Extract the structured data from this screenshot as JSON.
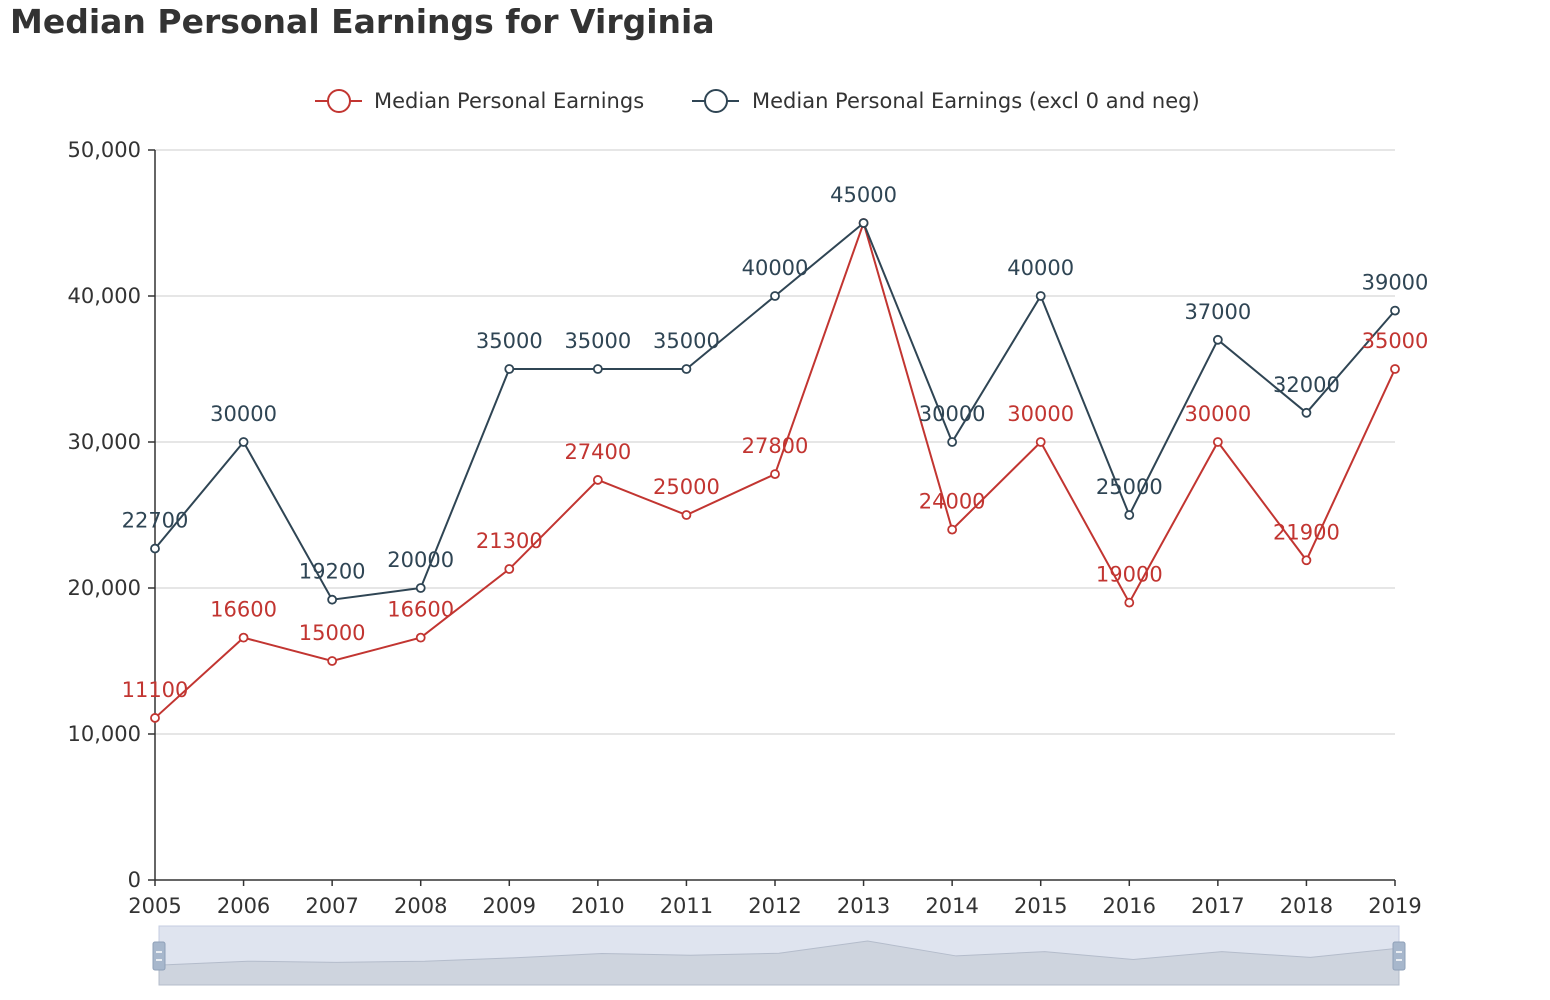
{
  "chart_data": {
    "type": "line",
    "title": "Median Personal Earnings for Virginia",
    "xlabel": "",
    "ylabel": "",
    "categories": [
      "2005",
      "2006",
      "2007",
      "2008",
      "2009",
      "2010",
      "2011",
      "2012",
      "2013",
      "2014",
      "2015",
      "2016",
      "2017",
      "2018",
      "2019"
    ],
    "ylim": [
      0,
      50000
    ],
    "yticks": [
      0,
      10000,
      20000,
      30000,
      40000,
      50000
    ],
    "ytick_labels": [
      "0",
      "10,000",
      "20,000",
      "30,000",
      "40,000",
      "50,000"
    ],
    "grid": true,
    "legend_position": "top",
    "data_zoom": "full range",
    "series": [
      {
        "name": "Median Personal Earnings",
        "color": "#c23531",
        "values": [
          11100,
          16600,
          15000,
          16600,
          21300,
          27400,
          25000,
          27800,
          45000,
          24000,
          30000,
          19000,
          30000,
          21900,
          35000
        ],
        "labels": [
          "11100",
          "16600",
          "15000",
          "16600",
          "21300",
          "27400",
          "25000",
          "27800",
          "",
          "24000",
          "30000",
          "19000",
          "30000",
          "21900",
          "35000"
        ]
      },
      {
        "name": "Median Personal Earnings (excl 0 and neg)",
        "color": "#2f4554",
        "values": [
          22700,
          30000,
          19200,
          20000,
          35000,
          35000,
          35000,
          40000,
          45000,
          30000,
          40000,
          25000,
          37000,
          32000,
          39000
        ],
        "labels": [
          "22700",
          "30000",
          "19200",
          "20000",
          "35000",
          "35000",
          "35000",
          "40000",
          "45000",
          "30000",
          "40000",
          "25000",
          "37000",
          "32000",
          "39000"
        ]
      }
    ]
  }
}
